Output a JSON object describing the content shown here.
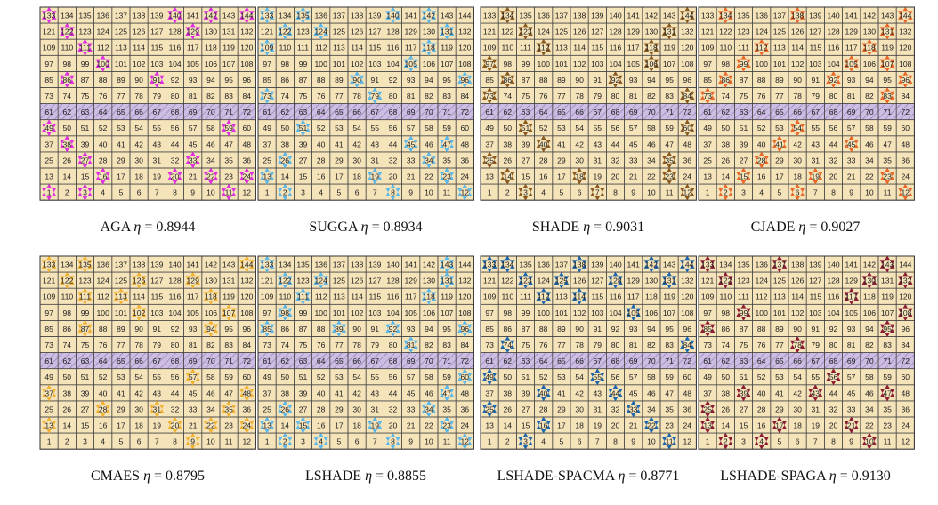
{
  "grid": {
    "rows": 12,
    "cols": 12,
    "first_number": 1,
    "last_number": 144,
    "shaded_row_numbers": [
      61,
      62,
      63,
      64,
      65,
      66,
      67,
      68,
      69,
      70,
      71,
      72
    ]
  },
  "style": {
    "cell_fill": "#f5e3b9",
    "grid_line": "#444444",
    "shaded_row_fill": "#cdbde3",
    "hatch_color": "#8a76b0",
    "text_color": "#222222"
  },
  "eta_symbol": "η",
  "panels": [
    {
      "algorithm": "AGA",
      "eta_text": "= 0.8944",
      "star_color": "#e02ee0",
      "stars": [
        133,
        140,
        142,
        144,
        122,
        129,
        111,
        100,
        91,
        86,
        49,
        59,
        38,
        27,
        33,
        16,
        20,
        22,
        24,
        1,
        3,
        11
      ]
    },
    {
      "algorithm": "SUGGA",
      "eta_text": "= 0.8934",
      "star_color": "#5db8ea",
      "stars": [
        133,
        135,
        140,
        142,
        122,
        124,
        131,
        109,
        118,
        105,
        90,
        96,
        73,
        79,
        51,
        45,
        47,
        26,
        34,
        13,
        19,
        23,
        2,
        8,
        12
      ]
    },
    {
      "algorithm": "SHADE",
      "eta_text": "= 0.9031",
      "star_color": "#8b5a1f",
      "stars": [
        134,
        144,
        123,
        131,
        112,
        118,
        97,
        106,
        86,
        92,
        73,
        84,
        51,
        60,
        40,
        25,
        35,
        14,
        18,
        23,
        3,
        7,
        12
      ]
    },
    {
      "algorithm": "CJADE",
      "eta_text": "= 0.9027",
      "star_color": "#e8692a",
      "stars": [
        134,
        138,
        144,
        131,
        112,
        118,
        99,
        105,
        107,
        86,
        92,
        96,
        73,
        83,
        54,
        41,
        45,
        28,
        15,
        19,
        23,
        2,
        6,
        12
      ]
    },
    {
      "algorithm": "CMAES",
      "eta_text": "= 0.8795",
      "star_color": "#f2b233",
      "stars": [
        133,
        135,
        144,
        122,
        126,
        129,
        111,
        113,
        118,
        102,
        107,
        87,
        94,
        57,
        37,
        48,
        28,
        31,
        35,
        13,
        20,
        22,
        24,
        9
      ]
    },
    {
      "algorithm": "LSHADE",
      "eta_text": "= 0.8855",
      "star_color": "#5db8ea",
      "stars": [
        133,
        143,
        122,
        124,
        131,
        111,
        118,
        98,
        85,
        89,
        92,
        96,
        81,
        60,
        47,
        26,
        34,
        13,
        15,
        19,
        23,
        2,
        4,
        8,
        12
      ]
    },
    {
      "algorithm": "LSHADE-SPACMA",
      "eta_text": "= 0.8771",
      "star_color": "#1e67ad",
      "stars": [
        133,
        134,
        138,
        142,
        144,
        123,
        125,
        128,
        131,
        112,
        114,
        105,
        74,
        84,
        49,
        55,
        40,
        44,
        25,
        33,
        16,
        22,
        3,
        11
      ]
    },
    {
      "algorithm": "LSHADE-SPAGA",
      "eta_text": "= 0.9130",
      "star_color": "#8e1c34",
      "stars": [
        133,
        137,
        143,
        122,
        130,
        132,
        117,
        99,
        108,
        85,
        95,
        78,
        56,
        39,
        43,
        47,
        25,
        13,
        17,
        21,
        2,
        4,
        10
      ]
    }
  ]
}
